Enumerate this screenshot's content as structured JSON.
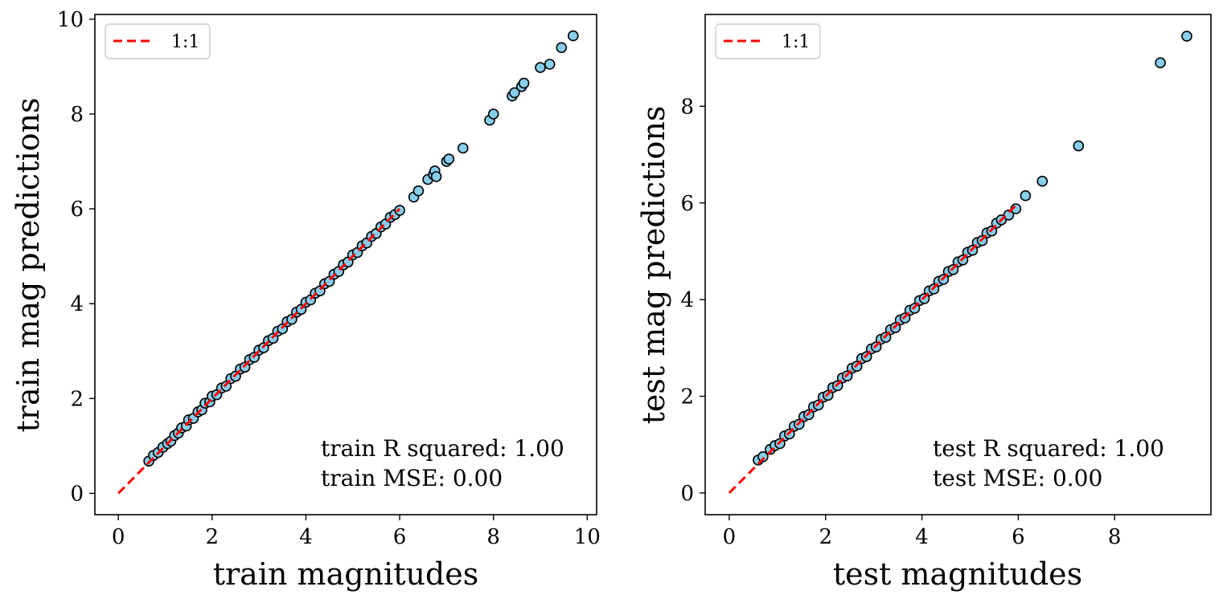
{
  "chart_data": [
    {
      "type": "scatter",
      "xlabel": "train magnitudes",
      "ylabel": "train mag predictions",
      "xlim": [
        -0.5,
        10.2
      ],
      "ylim": [
        -0.45,
        10.1
      ],
      "xticks": [
        0,
        2,
        4,
        6,
        8,
        10
      ],
      "yticks": [
        0,
        2,
        4,
        6,
        8,
        10
      ],
      "legend": {
        "label": "1:1",
        "placement": "top-left"
      },
      "reference_line": {
        "label": "1:1",
        "from": 0,
        "to": 6.0,
        "color": "#ff0000",
        "style": "dashed"
      },
      "annotations": [
        "train R squared: 1.00",
        "train MSE: 0.00"
      ],
      "marker_face_color": "#87ceeb",
      "marker_edge_color": "#000000",
      "points": [
        [
          0.65,
          0.68
        ],
        [
          0.75,
          0.8
        ],
        [
          0.85,
          0.86
        ],
        [
          0.95,
          0.97
        ],
        [
          1.05,
          1.05
        ],
        [
          1.12,
          1.1
        ],
        [
          1.2,
          1.22
        ],
        [
          1.28,
          1.27
        ],
        [
          1.35,
          1.38
        ],
        [
          1.45,
          1.42
        ],
        [
          1.5,
          1.55
        ],
        [
          1.6,
          1.58
        ],
        [
          1.7,
          1.72
        ],
        [
          1.78,
          1.76
        ],
        [
          1.85,
          1.9
        ],
        [
          1.95,
          1.93
        ],
        [
          2.0,
          2.05
        ],
        [
          2.1,
          2.08
        ],
        [
          2.2,
          2.22
        ],
        [
          2.3,
          2.26
        ],
        [
          2.4,
          2.42
        ],
        [
          2.5,
          2.47
        ],
        [
          2.6,
          2.62
        ],
        [
          2.7,
          2.66
        ],
        [
          2.8,
          2.82
        ],
        [
          2.9,
          2.87
        ],
        [
          3.0,
          3.02
        ],
        [
          3.1,
          3.07
        ],
        [
          3.2,
          3.22
        ],
        [
          3.3,
          3.27
        ],
        [
          3.4,
          3.42
        ],
        [
          3.5,
          3.47
        ],
        [
          3.6,
          3.62
        ],
        [
          3.7,
          3.67
        ],
        [
          3.8,
          3.82
        ],
        [
          3.9,
          3.88
        ],
        [
          4.0,
          4.03
        ],
        [
          4.1,
          4.08
        ],
        [
          4.2,
          4.22
        ],
        [
          4.3,
          4.27
        ],
        [
          4.4,
          4.42
        ],
        [
          4.5,
          4.47
        ],
        [
          4.6,
          4.62
        ],
        [
          4.7,
          4.68
        ],
        [
          4.8,
          4.82
        ],
        [
          4.9,
          4.88
        ],
        [
          5.0,
          5.03
        ],
        [
          5.1,
          5.08
        ],
        [
          5.2,
          5.22
        ],
        [
          5.3,
          5.28
        ],
        [
          5.4,
          5.42
        ],
        [
          5.5,
          5.48
        ],
        [
          5.6,
          5.62
        ],
        [
          5.7,
          5.68
        ],
        [
          5.8,
          5.82
        ],
        [
          5.9,
          5.88
        ],
        [
          6.0,
          5.97
        ],
        [
          6.3,
          6.25
        ],
        [
          6.4,
          6.38
        ],
        [
          6.6,
          6.62
        ],
        [
          6.72,
          6.72
        ],
        [
          6.75,
          6.8
        ],
        [
          6.78,
          6.68
        ],
        [
          7.0,
          7.0
        ],
        [
          7.05,
          7.05
        ],
        [
          7.35,
          7.28
        ],
        [
          7.92,
          7.87
        ],
        [
          8.0,
          8.0
        ],
        [
          8.4,
          8.38
        ],
        [
          8.45,
          8.45
        ],
        [
          8.6,
          8.58
        ],
        [
          8.65,
          8.65
        ],
        [
          9.0,
          8.98
        ],
        [
          9.2,
          9.05
        ],
        [
          9.45,
          9.4
        ],
        [
          9.7,
          9.65
        ]
      ]
    },
    {
      "type": "scatter",
      "xlabel": "test magnitudes",
      "ylabel": "test mag predictions",
      "xlim": [
        -0.5,
        10.0
      ],
      "ylim": [
        -0.45,
        9.9
      ],
      "xticks": [
        0,
        2,
        4,
        6,
        8
      ],
      "yticks": [
        0,
        2,
        4,
        6,
        8
      ],
      "legend": {
        "label": "1:1",
        "placement": "top-left"
      },
      "reference_line": {
        "label": "1:1",
        "from": 0,
        "to": 6.0,
        "color": "#ff0000",
        "style": "dashed"
      },
      "annotations": [
        "test R squared: 1.00",
        "test MSE: 0.00"
      ],
      "marker_face_color": "#87ceeb",
      "marker_edge_color": "#000000",
      "points": [
        [
          0.6,
          0.68
        ],
        [
          0.7,
          0.75
        ],
        [
          0.85,
          0.9
        ],
        [
          0.95,
          0.98
        ],
        [
          1.05,
          1.02
        ],
        [
          1.15,
          1.18
        ],
        [
          1.25,
          1.22
        ],
        [
          1.35,
          1.38
        ],
        [
          1.45,
          1.42
        ],
        [
          1.55,
          1.58
        ],
        [
          1.65,
          1.62
        ],
        [
          1.75,
          1.78
        ],
        [
          1.85,
          1.82
        ],
        [
          1.95,
          1.98
        ],
        [
          2.05,
          2.02
        ],
        [
          2.15,
          2.18
        ],
        [
          2.25,
          2.22
        ],
        [
          2.35,
          2.38
        ],
        [
          2.45,
          2.42
        ],
        [
          2.55,
          2.58
        ],
        [
          2.65,
          2.62
        ],
        [
          2.75,
          2.78
        ],
        [
          2.85,
          2.82
        ],
        [
          2.95,
          2.98
        ],
        [
          3.05,
          3.02
        ],
        [
          3.15,
          3.18
        ],
        [
          3.25,
          3.22
        ],
        [
          3.35,
          3.38
        ],
        [
          3.45,
          3.42
        ],
        [
          3.55,
          3.58
        ],
        [
          3.65,
          3.62
        ],
        [
          3.75,
          3.78
        ],
        [
          3.85,
          3.82
        ],
        [
          3.95,
          3.98
        ],
        [
          4.05,
          4.02
        ],
        [
          4.15,
          4.18
        ],
        [
          4.25,
          4.22
        ],
        [
          4.35,
          4.38
        ],
        [
          4.45,
          4.42
        ],
        [
          4.55,
          4.58
        ],
        [
          4.65,
          4.62
        ],
        [
          4.75,
          4.78
        ],
        [
          4.85,
          4.82
        ],
        [
          4.95,
          4.98
        ],
        [
          5.05,
          5.02
        ],
        [
          5.15,
          5.18
        ],
        [
          5.25,
          5.22
        ],
        [
          5.35,
          5.38
        ],
        [
          5.45,
          5.42
        ],
        [
          5.55,
          5.58
        ],
        [
          5.65,
          5.65
        ],
        [
          5.8,
          5.75
        ],
        [
          5.95,
          5.88
        ],
        [
          6.15,
          6.15
        ],
        [
          6.5,
          6.45
        ],
        [
          7.25,
          7.18
        ],
        [
          8.95,
          8.9
        ],
        [
          9.5,
          9.45
        ]
      ]
    }
  ]
}
